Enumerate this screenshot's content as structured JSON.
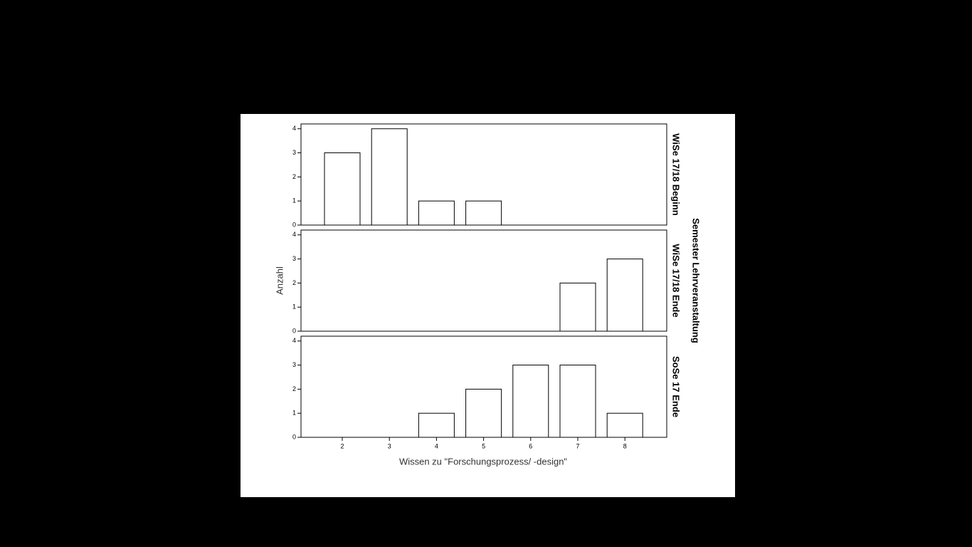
{
  "chart_data": {
    "type": "bar",
    "x_label": "Wissen zu \"Forschungsprozess/ -design\"",
    "y_label": "Anzahl",
    "panel_title": "Semester Lehrveranstaltung",
    "categories": [
      2,
      3,
      4,
      5,
      6,
      7,
      8
    ],
    "ylim": [
      0,
      4.2
    ],
    "yticks": [
      0,
      1,
      2,
      3,
      4
    ],
    "series": [
      {
        "name": "WiSe 17/18 Beginn",
        "color": "#ffffff",
        "values": [
          3,
          4,
          1,
          1,
          0,
          0,
          0
        ]
      },
      {
        "name": "WiSe 17/18 Ende",
        "color": "#ffffff",
        "values": [
          0,
          0,
          0,
          0,
          0,
          2,
          3
        ]
      },
      {
        "name": "SoSe 17 Ende",
        "color": "#ffffff",
        "values": [
          0,
          0,
          1,
          2,
          3,
          3,
          1
        ]
      }
    ]
  }
}
